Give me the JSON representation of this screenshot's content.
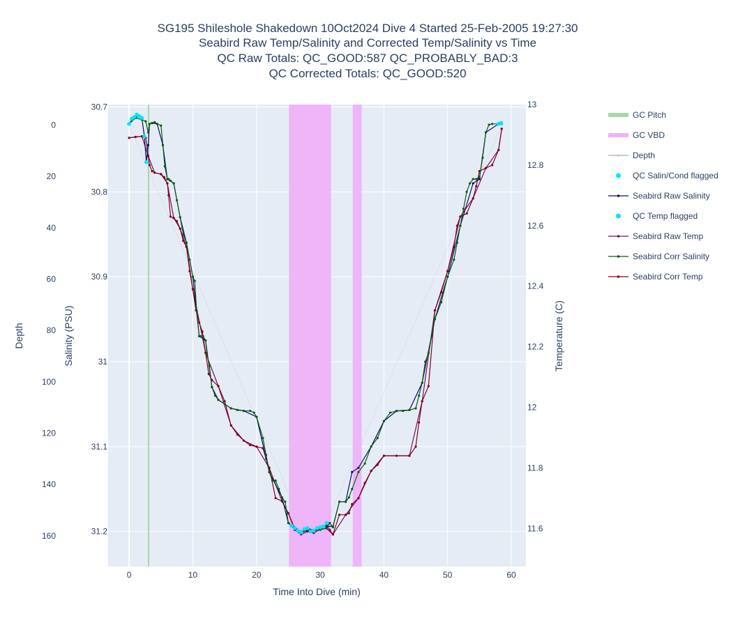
{
  "chart_data": {
    "type": "line",
    "title_lines": [
      "SG195 Shileshole Shakedown 10Oct2024 Dive 4 Started 25-Feb-2005 19:27:30",
      "Seabird Raw Temp/Salinity and Corrected Temp/Salinity vs Time",
      "QC Raw Totals: QC_GOOD:587 QC_PROBABLY_BAD:3",
      "QC Corrected Totals: QC_GOOD:520"
    ],
    "xlabel": "Time Into Dive (min)",
    "y_depth_label": "Depth",
    "y_salinity_label": "Salinity (PSU)",
    "y_temp_label": "Temperature (C)",
    "xlim": [
      -3.3,
      62.3
    ],
    "depth_lim": [
      -8,
      172
    ],
    "salinity_lim": [
      30.6972,
      31.2413
    ],
    "temp_lim": [
      11.474,
      13.0
    ],
    "x_ticks": [
      "0",
      "10",
      "20",
      "30",
      "40",
      "50",
      "60"
    ],
    "x_tick_values": [
      0,
      10,
      20,
      30,
      40,
      50,
      60
    ],
    "depth_ticks": [
      "0",
      "20",
      "40",
      "60",
      "80",
      "100",
      "120",
      "140",
      "160"
    ],
    "depth_tick_values": [
      0,
      20,
      40,
      60,
      80,
      100,
      120,
      140,
      160
    ],
    "salinity_ticks": [
      "30.7",
      "30.8",
      "30.9",
      "31",
      "31.1",
      "31.2"
    ],
    "salinity_tick_values": [
      30.7,
      30.8,
      30.9,
      31.0,
      31.1,
      31.2
    ],
    "temp_ticks": [
      "13",
      "12.8",
      "12.6",
      "12.4",
      "12.2",
      "12",
      "11.8",
      "11.6"
    ],
    "temp_tick_values": [
      13.0,
      12.8,
      12.6,
      12.4,
      12.2,
      12.0,
      11.8,
      11.6
    ],
    "grid": true,
    "legend_position": "right",
    "colors": {
      "plot_bg": "#e5ecf6",
      "grid": "#ffffff",
      "gc_pitch": "#a6d8a6",
      "gc_vbd": "#eeb2f8",
      "depth": "#c8ccd2",
      "qc_flag": "#00e5ff",
      "raw_salinity": "#0a0a6e",
      "raw_temp": "#7a0a5e",
      "corr_salinity": "#0b5a0b",
      "corr_temp": "#7d0318"
    },
    "gc_pitch_x": [
      3.05
    ],
    "gc_vbd_ranges": [
      [
        25.1,
        28.2
      ],
      [
        28.2,
        31.7
      ],
      [
        35.1,
        36.5
      ]
    ],
    "depth_series": {
      "name": "Depth",
      "x": [
        0.0,
        29.0,
        58.5
      ],
      "y": [
        0.0,
        166.0,
        0.0
      ]
    },
    "series": [
      {
        "name": "Seabird Corr Salinity",
        "axis": "salinity",
        "x": [
          0.0,
          1.0,
          2.0,
          2.6,
          3.0,
          3.2,
          3.6,
          4.0,
          4.4,
          5.0,
          5.3,
          5.6,
          6.0,
          6.2,
          6.5,
          7.0,
          7.5,
          8.0,
          8.5,
          9.0,
          9.5,
          10.0,
          10.3,
          10.6,
          11.0,
          11.2,
          11.6,
          12.0,
          12.2,
          12.6,
          13.0,
          13.5,
          14.0,
          15.0,
          16.0,
          17.0,
          18.0,
          19.0,
          19.6,
          20.0,
          21.0,
          21.5,
          22.0,
          22.5,
          23.0,
          23.5,
          24.0,
          24.5,
          25.0,
          26.0,
          27.0,
          28.0,
          29.0,
          30.0,
          31.0,
          31.5,
          32.0,
          33.0,
          34.0,
          34.5,
          35.0,
          36.0,
          37.0,
          38.0,
          39.0,
          40.0,
          41.0,
          42.0,
          43.0,
          44.0,
          45.0,
          45.5,
          46.0,
          46.5,
          47.0,
          47.5,
          48.0,
          49.0,
          50.0,
          51.0,
          51.5,
          52.0,
          52.5,
          53.0,
          53.5,
          54.0,
          54.5,
          55.0,
          55.5,
          56.0,
          56.5,
          57.0,
          58.0,
          58.5
        ],
        "y": [
          30.72,
          30.713,
          30.715,
          30.717,
          30.73,
          30.72,
          30.719,
          30.718,
          30.72,
          30.722,
          30.745,
          30.77,
          30.785,
          30.785,
          30.787,
          30.79,
          30.81,
          30.83,
          30.85,
          30.86,
          30.88,
          30.9,
          30.905,
          30.94,
          30.97,
          30.97,
          30.97,
          30.975,
          30.99,
          31.005,
          31.03,
          31.04,
          31.045,
          31.05,
          31.055,
          31.057,
          31.058,
          31.058,
          31.06,
          31.065,
          31.09,
          31.11,
          31.13,
          31.14,
          31.14,
          31.15,
          31.16,
          31.165,
          31.19,
          31.195,
          31.2,
          31.198,
          31.2,
          31.198,
          31.196,
          31.19,
          31.195,
          31.165,
          31.165,
          31.16,
          31.15,
          31.13,
          31.12,
          31.1,
          31.09,
          31.07,
          31.06,
          31.058,
          31.058,
          31.057,
          31.055,
          31.04,
          31.025,
          31.0,
          30.99,
          30.97,
          30.95,
          30.93,
          30.9,
          30.88,
          30.86,
          30.84,
          30.82,
          30.8,
          30.79,
          30.785,
          30.785,
          30.783,
          30.76,
          30.73,
          30.721,
          30.72,
          30.72,
          30.72
        ]
      },
      {
        "name": "Seabird Corr Temp",
        "axis": "temperature",
        "x": [
          0.0,
          1.0,
          2.0,
          2.6,
          3.0,
          3.2,
          3.6,
          4.0,
          5.0,
          5.5,
          6.0,
          6.2,
          6.5,
          7.0,
          7.5,
          8.0,
          8.5,
          9.0,
          9.5,
          10.0,
          10.5,
          11.0,
          11.5,
          12.0,
          12.5,
          13.0,
          14.0,
          15.0,
          16.0,
          17.0,
          18.0,
          19.0,
          20.0,
          21.0,
          21.5,
          22.0,
          23.0,
          24.0,
          25.0,
          26.0,
          27.0,
          28.0,
          29.0,
          30.0,
          31.0,
          31.5,
          32.0,
          33.0,
          34.0,
          34.5,
          35.0,
          36.0,
          37.0,
          38.0,
          39.0,
          40.0,
          42.0,
          44.0,
          45.0,
          45.5,
          46.0,
          47.0,
          48.0,
          49.0,
          50.0,
          51.0,
          51.5,
          52.0,
          53.0,
          54.0,
          54.5,
          55.0,
          56.0,
          57.0,
          58.0,
          58.5
        ],
        "y": [
          12.89,
          12.893,
          12.895,
          12.89,
          12.83,
          12.8,
          12.78,
          12.775,
          12.77,
          12.76,
          12.74,
          12.7,
          12.63,
          12.625,
          12.615,
          12.59,
          12.55,
          12.53,
          12.45,
          12.39,
          12.32,
          12.28,
          12.25,
          12.18,
          12.11,
          12.09,
          12.07,
          12.02,
          11.94,
          11.91,
          11.89,
          11.875,
          11.87,
          11.865,
          11.83,
          11.8,
          11.7,
          11.69,
          11.65,
          11.6,
          11.587,
          11.592,
          11.59,
          11.6,
          11.61,
          11.595,
          11.58,
          11.645,
          11.645,
          11.65,
          11.68,
          11.7,
          11.75,
          11.79,
          11.81,
          11.84,
          11.84,
          11.84,
          11.87,
          11.95,
          12.02,
          12.07,
          12.32,
          12.38,
          12.45,
          12.53,
          12.6,
          12.63,
          12.64,
          12.69,
          12.73,
          12.78,
          12.79,
          12.8,
          12.85,
          12.92
        ]
      },
      {
        "name": "Seabird Raw Salinity",
        "axis": "salinity",
        "x": [
          0.0,
          0.5,
          1.0,
          1.5,
          2.0,
          2.4,
          2.7,
          3.0,
          3.2,
          3.6,
          4.4,
          5.3,
          6.0,
          7.0,
          8.0,
          9.0,
          10.0,
          11.0,
          12.0,
          13.0,
          14.0,
          16.0,
          18.0,
          20.0,
          22.0,
          24.0,
          25.0,
          26.0,
          27.0,
          28.0,
          29.0,
          30.0,
          31.0,
          32.0,
          33.0,
          34.0,
          35.0,
          36.0,
          38.0,
          40.0,
          42.0,
          44.0,
          46.0,
          48.0,
          50.0,
          52.0,
          54.0,
          55.0,
          56.0,
          58.0,
          58.5
        ],
        "y": [
          30.72,
          30.715,
          30.713,
          30.71,
          30.713,
          30.735,
          30.765,
          30.745,
          30.72,
          30.719,
          30.72,
          30.745,
          30.785,
          30.79,
          30.83,
          30.86,
          30.9,
          30.97,
          30.975,
          31.03,
          31.045,
          31.055,
          31.058,
          31.065,
          31.13,
          31.16,
          31.19,
          31.197,
          31.201,
          31.196,
          31.199,
          31.196,
          31.194,
          31.194,
          31.165,
          31.165,
          31.13,
          31.125,
          31.1,
          31.07,
          31.058,
          31.057,
          31.025,
          30.95,
          30.9,
          30.84,
          30.79,
          30.785,
          30.73,
          30.72,
          30.72
        ]
      },
      {
        "name": "Seabird Raw Temp",
        "axis": "temperature",
        "x": [
          0.0,
          1.0,
          2.0,
          3.0,
          4.0,
          5.0,
          6.0,
          7.0,
          8.0,
          9.0,
          10.0,
          12.0,
          14.0,
          16.0,
          18.0,
          20.0,
          22.0,
          24.0,
          25.0,
          26.0,
          27.0,
          28.0,
          29.0,
          30.0,
          31.0,
          32.0,
          34.0,
          36.0,
          38.0,
          40.0,
          44.0,
          46.0,
          48.0,
          50.0,
          52.0,
          54.0,
          56.0,
          58.0,
          58.5
        ],
        "y": [
          12.89,
          12.893,
          12.895,
          12.83,
          12.775,
          12.77,
          12.74,
          12.625,
          12.59,
          12.53,
          12.39,
          12.18,
          12.07,
          11.94,
          11.89,
          11.87,
          11.8,
          11.69,
          11.65,
          11.595,
          11.58,
          11.59,
          11.585,
          11.598,
          11.6,
          11.58,
          11.645,
          11.7,
          11.79,
          11.84,
          11.84,
          12.02,
          12.32,
          12.45,
          12.63,
          12.69,
          12.79,
          12.85,
          12.92
        ]
      }
    ],
    "qc_salin_flagged": {
      "name": "QC Salin/Cond flagged",
      "x": [
        0.0,
        0.4,
        0.8,
        1.2,
        1.6,
        2.0,
        2.4,
        2.7,
        25.5,
        26.0,
        26.5,
        27.0,
        27.5,
        28.0,
        28.5,
        29.0,
        29.5,
        30.0,
        30.5,
        31.0,
        58.0,
        58.4
      ],
      "y": [
        30.72,
        30.714,
        30.712,
        30.709,
        30.711,
        30.713,
        30.735,
        30.765,
        31.193,
        31.196,
        31.199,
        31.201,
        31.197,
        31.196,
        31.2,
        31.199,
        31.196,
        31.195,
        31.194,
        31.19,
        30.72,
        30.719
      ]
    },
    "qc_temp_flagged": {
      "name": "QC Temp flagged",
      "x": [],
      "y": []
    },
    "legend": [
      {
        "name": "GC Pitch",
        "style": "band",
        "color_key": "gc_pitch"
      },
      {
        "name": "GC VBD",
        "style": "band",
        "color_key": "gc_vbd"
      },
      {
        "name": "Depth",
        "style": "line-faded",
        "color_key": "depth"
      },
      {
        "name": "QC Salin/Cond flagged",
        "style": "marker",
        "color_key": "qc_flag"
      },
      {
        "name": "Seabird Raw Salinity",
        "style": "line-marker",
        "color_key": "raw_salinity"
      },
      {
        "name": "QC Temp flagged",
        "style": "marker",
        "color_key": "qc_flag"
      },
      {
        "name": "Seabird Raw Temp",
        "style": "line-marker",
        "color_key": "raw_temp"
      },
      {
        "name": "Seabird Corr Salinity",
        "style": "line-marker",
        "color_key": "corr_salinity"
      },
      {
        "name": "Seabird Corr Temp",
        "style": "line-marker",
        "color_key": "corr_temp"
      }
    ]
  }
}
